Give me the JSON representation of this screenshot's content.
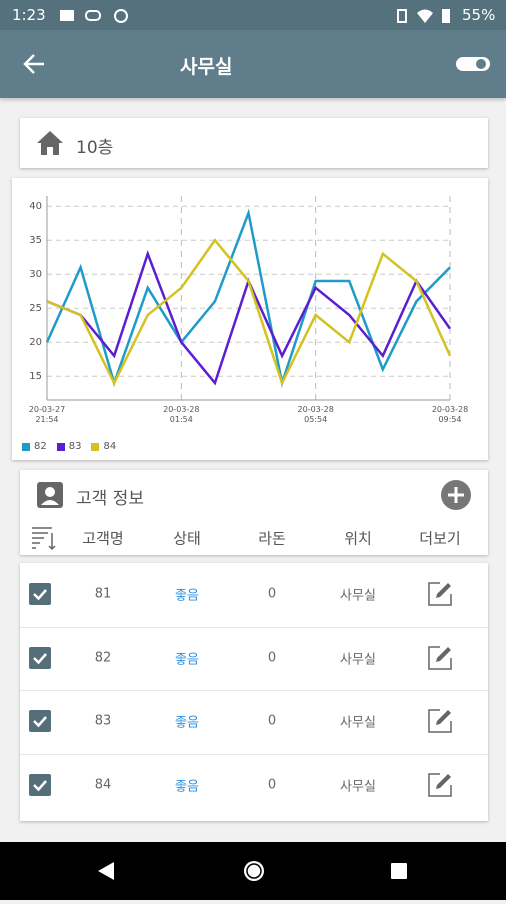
{
  "status_bar": {
    "time": "1:23",
    "battery": "55%"
  },
  "app_bar": {
    "title": "사무실"
  },
  "location": {
    "label": "10층"
  },
  "chart_data": {
    "type": "line",
    "categories": [
      "20-03-27 21:54",
      null,
      null,
      null,
      "20-03-28 01:54",
      null,
      null,
      null,
      "20-03-28 05:54",
      null,
      null,
      null,
      "20-03-28 09:54"
    ],
    "series": [
      {
        "name": "82",
        "color": "#1e9bc8",
        "values": [
          20,
          31,
          14,
          28,
          20,
          26,
          39,
          14,
          29,
          29,
          16,
          26,
          31
        ]
      },
      {
        "name": "83",
        "color": "#5b1fd1",
        "values": [
          26,
          24,
          18,
          33,
          20,
          14,
          29,
          18,
          28,
          24,
          18,
          29,
          22
        ]
      },
      {
        "name": "84",
        "color": "#d3c21f",
        "values": [
          26,
          24,
          14,
          24,
          28,
          35,
          29,
          14,
          24,
          20,
          33,
          29,
          18
        ]
      }
    ],
    "ylim": [
      11.5,
      41.5
    ],
    "yticks": [
      15,
      20,
      25,
      30,
      35,
      40
    ],
    "grid": true,
    "legend": "bottom-left"
  },
  "customer_table": {
    "title": "고객 정보",
    "columns": [
      "고객명",
      "상태",
      "라돈",
      "위치",
      "더보기"
    ],
    "rows": [
      [
        81,
        "좋음",
        0,
        "사무실"
      ],
      [
        82,
        "좋음",
        0,
        "사무실"
      ],
      [
        83,
        "좋음",
        0,
        "사무실"
      ],
      [
        84,
        "좋음",
        0,
        "사무실"
      ]
    ]
  }
}
